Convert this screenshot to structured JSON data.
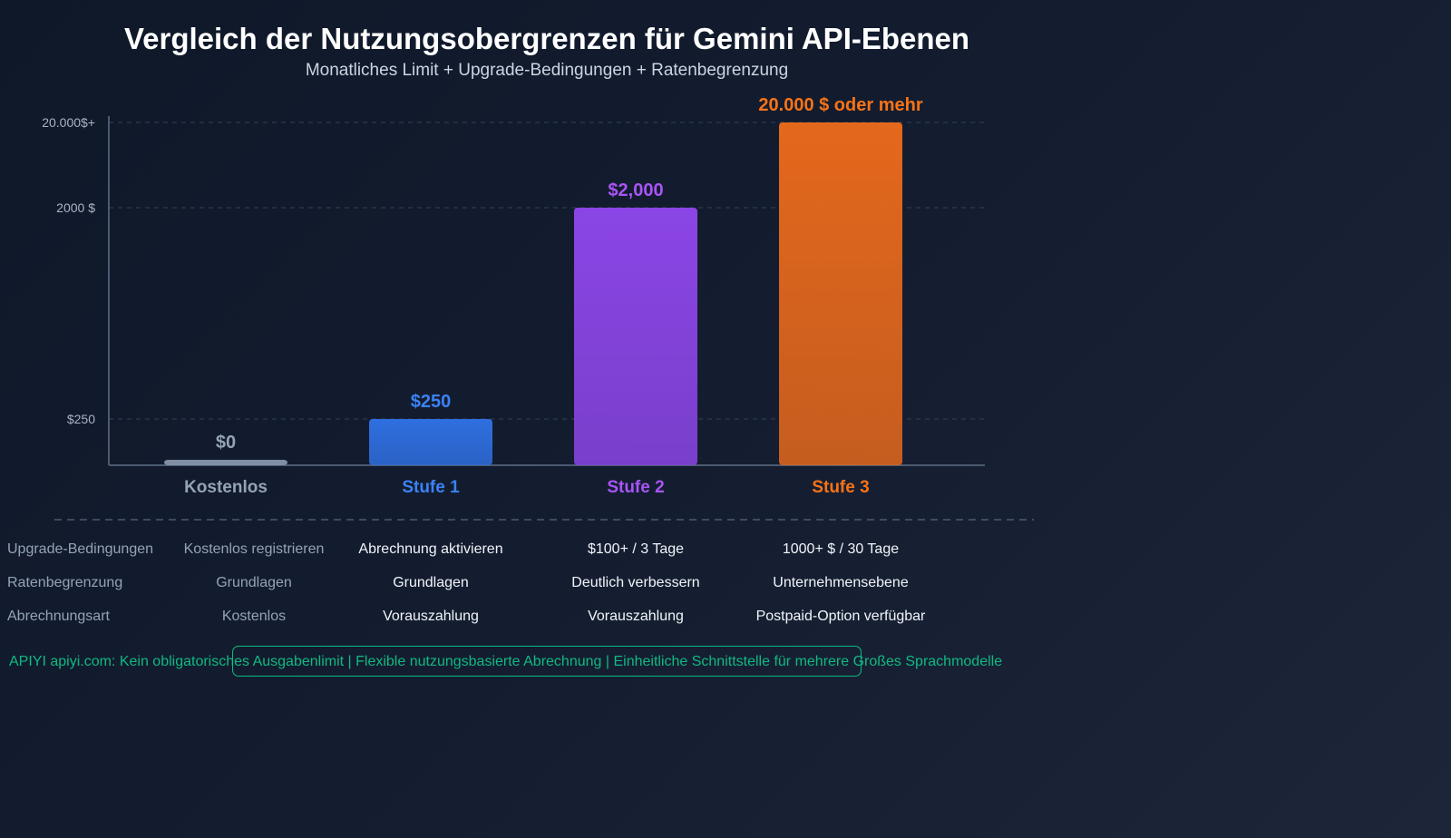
{
  "chart_data": {
    "type": "bar",
    "title": "Vergleich der Nutzungsobergrenzen für Gemini API-Ebenen",
    "subtitle": "Monatliches Limit + Upgrade-Bedingungen + Ratenbegrenzung",
    "categories": [
      "Kostenlos",
      "Stufe 1",
      "Stufe 2",
      "Stufe 3"
    ],
    "values": [
      0,
      250,
      2000,
      20000
    ],
    "data_labels": [
      "$0",
      "$250",
      "$2,000",
      "20.000 $ oder mehr"
    ],
    "colors": [
      "#7f8ea3",
      "#2f6fe0",
      "#8b45e6",
      "#e4681c"
    ],
    "y_ticks": [
      {
        "value": 250,
        "label": "$250"
      },
      {
        "value": 2000,
        "label": "2000 $"
      },
      {
        "value": 20000,
        "label": "20.000$+"
      }
    ],
    "y_scale": "non-linear",
    "grid": "dashed horizontal"
  },
  "table": {
    "rows": [
      {
        "label": "Upgrade-Bedingungen",
        "cells": [
          "Kostenlos registrieren",
          "Abrechnung aktivieren",
          "$100+ / 3 Tage",
          "1000+ $ / 30 Tage"
        ]
      },
      {
        "label": "Ratenbegrenzung",
        "cells": [
          "Grundlagen",
          "Grundlagen",
          "Deutlich verbessern",
          "Unternehmensebene"
        ]
      },
      {
        "label": "Abrechnungsart",
        "cells": [
          "Kostenlos",
          "Vorauszahlung",
          "Vorauszahlung",
          "Postpaid-Option verfügbar"
        ]
      }
    ]
  },
  "footer": "APIYI apiyi.com: Kein obligatorisches Ausgabenlimit | Flexible nutzungsbasierte Abrechnung | Einheitliche Schnittstelle für mehrere Großes Sprachmodelle"
}
